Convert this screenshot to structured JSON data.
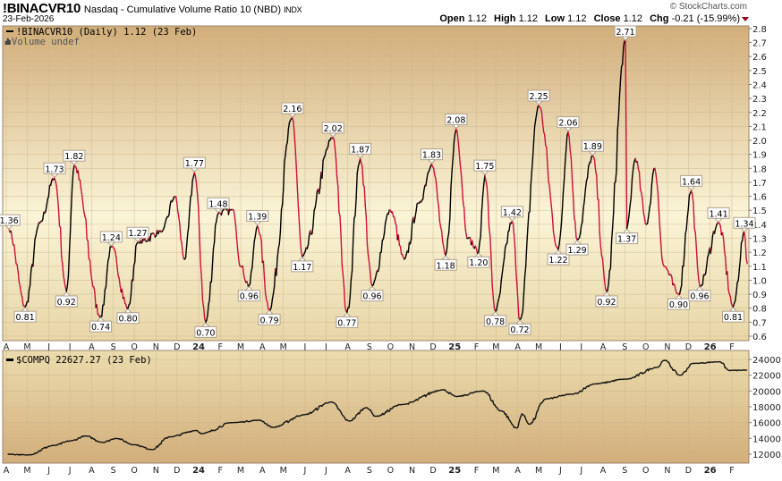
{
  "header": {
    "symbol": "!BINACVR10",
    "name": "Nasdaq - Cumulative Volume Ratio 10 (NBD)",
    "exchange": "INDX",
    "date": "23-Feb-2026",
    "copyright": "© StockCharts.com",
    "open_label": "Open",
    "open": "1.12",
    "high_label": "High",
    "high": "1.12",
    "low_label": "Low",
    "low": "1.12",
    "close_label": "Close",
    "close": "1.12",
    "chg_label": "Chg",
    "chg": "-0.21 (-15.99%)"
  },
  "colors": {
    "up": "#000000",
    "down": "#d0103a",
    "panel_tan": "#d4b07e",
    "panel_light": "#faf4d6"
  },
  "chart_data": [
    {
      "type": "line",
      "legend": "!BINACVR10 (Daily) 1.12 (23 Feb)",
      "volume_note": "Volume undef",
      "ylim": [
        0.6,
        2.8
      ],
      "yticks": [
        "0.6",
        "0.7",
        "0.8",
        "0.9",
        "1.0",
        "1.1",
        "1.2",
        "1.3",
        "1.4",
        "1.5",
        "1.6",
        "1.7",
        "1.8",
        "1.9",
        "2.0",
        "2.1",
        "2.2",
        "2.3",
        "2.4",
        "2.5",
        "2.6",
        "2.7",
        "2.8"
      ],
      "grid": true,
      "last_value": 1.12,
      "labeled_points": [
        {
          "date": "2023-04-05",
          "value": 1.36,
          "label": "1.36",
          "kind": "peak"
        },
        {
          "date": "2023-04-28",
          "value": 0.81,
          "label": "0.81",
          "kind": "trough"
        },
        {
          "date": "2023-06-09",
          "value": 1.73,
          "label": "1.73",
          "kind": "peak"
        },
        {
          "date": "2023-06-26",
          "value": 0.92,
          "label": "0.92",
          "kind": "trough"
        },
        {
          "date": "2023-07-07",
          "value": 1.82,
          "label": "1.82",
          "kind": "peak"
        },
        {
          "date": "2023-08-14",
          "value": 0.74,
          "label": "0.74",
          "kind": "trough"
        },
        {
          "date": "2023-08-29",
          "value": 1.24,
          "label": "1.24",
          "kind": "peak"
        },
        {
          "date": "2023-09-22",
          "value": 0.8,
          "label": "0.80",
          "kind": "trough"
        },
        {
          "date": "2023-10-06",
          "value": 1.27,
          "label": "1.27",
          "kind": "peak"
        },
        {
          "date": "2023-12-26",
          "value": 1.77,
          "label": "1.77",
          "kind": "peak"
        },
        {
          "date": "2024-01-11",
          "value": 0.7,
          "label": "0.70",
          "kind": "trough"
        },
        {
          "date": "2024-01-29",
          "value": 1.48,
          "label": "1.48",
          "kind": "peak"
        },
        {
          "date": "2024-03-13",
          "value": 0.96,
          "label": "0.96",
          "kind": "trough"
        },
        {
          "date": "2024-03-25",
          "value": 1.39,
          "label": "1.39",
          "kind": "peak"
        },
        {
          "date": "2024-04-11",
          "value": 0.79,
          "label": "0.79",
          "kind": "trough"
        },
        {
          "date": "2024-05-14",
          "value": 2.16,
          "label": "2.16",
          "kind": "peak"
        },
        {
          "date": "2024-05-28",
          "value": 1.17,
          "label": "1.17",
          "kind": "trough"
        },
        {
          "date": "2024-07-11",
          "value": 2.02,
          "label": "2.02",
          "kind": "peak"
        },
        {
          "date": "2024-07-31",
          "value": 0.77,
          "label": "0.77",
          "kind": "trough"
        },
        {
          "date": "2024-08-19",
          "value": 1.87,
          "label": "1.87",
          "kind": "peak"
        },
        {
          "date": "2024-09-05",
          "value": 0.96,
          "label": "0.96",
          "kind": "trough"
        },
        {
          "date": "2024-11-29",
          "value": 1.83,
          "label": "1.83",
          "kind": "peak"
        },
        {
          "date": "2024-12-19",
          "value": 1.18,
          "label": "1.18",
          "kind": "trough"
        },
        {
          "date": "2025-01-03",
          "value": 2.08,
          "label": "2.08",
          "kind": "peak"
        },
        {
          "date": "2025-02-04",
          "value": 1.2,
          "label": "1.20",
          "kind": "trough"
        },
        {
          "date": "2025-02-13",
          "value": 1.75,
          "label": "1.75",
          "kind": "peak"
        },
        {
          "date": "2025-02-28",
          "value": 0.78,
          "label": "0.78",
          "kind": "trough"
        },
        {
          "date": "2025-03-24",
          "value": 1.42,
          "label": "1.42",
          "kind": "peak"
        },
        {
          "date": "2025-04-04",
          "value": 0.72,
          "label": "0.72",
          "kind": "trough"
        },
        {
          "date": "2025-05-01",
          "value": 2.25,
          "label": "2.25",
          "kind": "peak"
        },
        {
          "date": "2025-05-29",
          "value": 1.22,
          "label": "1.22",
          "kind": "trough"
        },
        {
          "date": "2025-06-12",
          "value": 2.06,
          "label": "2.06",
          "kind": "peak"
        },
        {
          "date": "2025-06-25",
          "value": 1.29,
          "label": "1.29",
          "kind": "trough"
        },
        {
          "date": "2025-07-17",
          "value": 1.89,
          "label": "1.89",
          "kind": "peak"
        },
        {
          "date": "2025-08-06",
          "value": 0.92,
          "label": "0.92",
          "kind": "trough"
        },
        {
          "date": "2025-09-02",
          "value": 2.71,
          "label": "2.71",
          "kind": "peak"
        },
        {
          "date": "2025-09-04",
          "value": 1.37,
          "label": "1.37",
          "kind": "trough"
        },
        {
          "date": "2025-11-17",
          "value": 0.9,
          "label": "0.90",
          "kind": "trough"
        },
        {
          "date": "2025-12-05",
          "value": 1.64,
          "label": "1.64",
          "kind": "peak"
        },
        {
          "date": "2025-12-17",
          "value": 0.96,
          "label": "0.96",
          "kind": "trough"
        },
        {
          "date": "2026-01-13",
          "value": 1.41,
          "label": "1.41",
          "kind": "peak"
        },
        {
          "date": "2026-02-03",
          "value": 0.81,
          "label": "0.81",
          "kind": "trough"
        },
        {
          "date": "2026-02-19",
          "value": 1.34,
          "label": "1.34",
          "kind": "peak"
        }
      ],
      "other_points": [
        {
          "date": "2023-05-19",
          "value": 1.41
        },
        {
          "date": "2023-11-10",
          "value": 1.35
        },
        {
          "date": "2023-11-28",
          "value": 1.6
        },
        {
          "date": "2023-12-12",
          "value": 1.15
        },
        {
          "date": "2024-02-20",
          "value": 1.5
        },
        {
          "date": "2024-03-01",
          "value": 1.1
        },
        {
          "date": "2024-10-01",
          "value": 1.5
        },
        {
          "date": "2024-10-21",
          "value": 1.15
        },
        {
          "date": "2024-11-11",
          "value": 1.55
        },
        {
          "date": "2025-01-20",
          "value": 1.3
        },
        {
          "date": "2025-09-16",
          "value": 1.87
        },
        {
          "date": "2025-10-02",
          "value": 1.4
        },
        {
          "date": "2025-10-14",
          "value": 1.8
        },
        {
          "date": "2025-10-27",
          "value": 1.1
        },
        {
          "date": "2026-02-23",
          "value": 1.12
        }
      ],
      "xticks": [
        "A",
        "M",
        "J",
        "J",
        "A",
        "S",
        "O",
        "N",
        "D",
        "24",
        "F",
        "M",
        "A",
        "M",
        "J",
        "J",
        "A",
        "S",
        "O",
        "N",
        "D",
        "25",
        "F",
        "M",
        "A",
        "M",
        "J",
        "J",
        "A",
        "S",
        "O",
        "N",
        "D",
        "26",
        "F"
      ]
    },
    {
      "type": "line",
      "legend": "$COMPQ 22627.27 (23 Feb)",
      "ylim": [
        11000,
        25000
      ],
      "yticks": [
        "12000",
        "14000",
        "16000",
        "18000",
        "20000",
        "22000",
        "24000"
      ],
      "grid": true,
      "last_value": 22627.27,
      "points": [
        {
          "date": "2023-04-03",
          "value": 12000
        },
        {
          "date": "2023-05-01",
          "value": 11900
        },
        {
          "date": "2023-06-08",
          "value": 13100
        },
        {
          "date": "2023-07-03",
          "value": 13700
        },
        {
          "date": "2023-07-23",
          "value": 14300
        },
        {
          "date": "2023-08-17",
          "value": 13500
        },
        {
          "date": "2023-09-05",
          "value": 14000
        },
        {
          "date": "2023-10-01",
          "value": 13200
        },
        {
          "date": "2023-10-26",
          "value": 12600
        },
        {
          "date": "2023-11-21",
          "value": 14200
        },
        {
          "date": "2023-12-29",
          "value": 15000
        },
        {
          "date": "2024-01-05",
          "value": 14600
        },
        {
          "date": "2024-02-19",
          "value": 16000
        },
        {
          "date": "2024-03-28",
          "value": 16300
        },
        {
          "date": "2024-04-16",
          "value": 15400
        },
        {
          "date": "2024-05-31",
          "value": 17000
        },
        {
          "date": "2024-07-08",
          "value": 18600
        },
        {
          "date": "2024-08-03",
          "value": 16200
        },
        {
          "date": "2024-08-28",
          "value": 17900
        },
        {
          "date": "2024-09-10",
          "value": 16800
        },
        {
          "date": "2024-10-18",
          "value": 18300
        },
        {
          "date": "2024-12-15",
          "value": 20150
        },
        {
          "date": "2025-01-03",
          "value": 19300
        },
        {
          "date": "2025-02-11",
          "value": 20000
        },
        {
          "date": "2025-03-08",
          "value": 17500
        },
        {
          "date": "2025-03-31",
          "value": 15300
        },
        {
          "date": "2025-04-07",
          "value": 17100
        },
        {
          "date": "2025-04-18",
          "value": 15800
        },
        {
          "date": "2025-05-11",
          "value": 19000
        },
        {
          "date": "2025-06-18",
          "value": 19600
        },
        {
          "date": "2025-07-20",
          "value": 20900
        },
        {
          "date": "2025-09-03",
          "value": 21500
        },
        {
          "date": "2025-10-18",
          "value": 23000
        },
        {
          "date": "2025-10-27",
          "value": 23900
        },
        {
          "date": "2025-11-19",
          "value": 22000
        },
        {
          "date": "2025-12-08",
          "value": 23500
        },
        {
          "date": "2026-01-15",
          "value": 23700
        },
        {
          "date": "2026-01-28",
          "value": 22600
        },
        {
          "date": "2026-02-23",
          "value": 22627.27
        }
      ],
      "xticks": [
        "A",
        "M",
        "J",
        "J",
        "A",
        "S",
        "O",
        "N",
        "D",
        "24",
        "F",
        "M",
        "A",
        "M",
        "J",
        "J",
        "A",
        "S",
        "O",
        "N",
        "D",
        "25",
        "F",
        "M",
        "A",
        "M",
        "J",
        "J",
        "A",
        "S",
        "O",
        "N",
        "D",
        "26",
        "F"
      ]
    }
  ]
}
